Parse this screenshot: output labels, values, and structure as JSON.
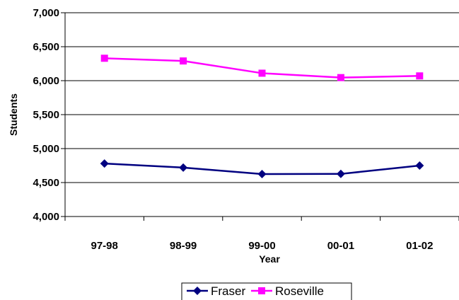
{
  "chart_data": {
    "type": "line",
    "title": "",
    "xlabel": "Year",
    "ylabel": "Students",
    "categories": [
      "97-98",
      "98-99",
      "99-00",
      "00-01",
      "01-02"
    ],
    "ylim": [
      4000,
      7000
    ],
    "yticks": [
      4000,
      4500,
      5000,
      5500,
      6000,
      6500,
      7000
    ],
    "ytick_labels": [
      "4,000",
      "4,500",
      "5,000",
      "5,500",
      "6,000",
      "6,500",
      "7,000"
    ],
    "grid": true,
    "legend_position": "bottom",
    "series": [
      {
        "name": "Fraser",
        "values": [
          4780,
          4720,
          4625,
          4627,
          4750
        ],
        "color": "#000080",
        "marker": "diamond"
      },
      {
        "name": "Roseville",
        "values": [
          6330,
          6290,
          6110,
          6045,
          6070
        ],
        "color": "#ff00ff",
        "marker": "square"
      }
    ]
  }
}
